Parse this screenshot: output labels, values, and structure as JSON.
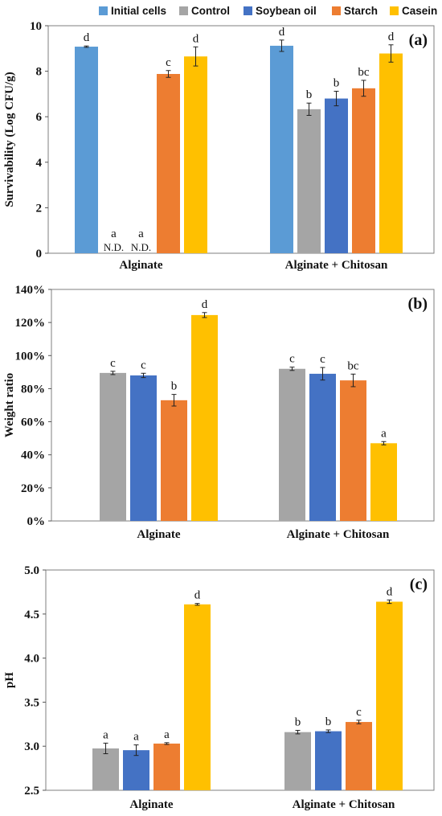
{
  "legend": [
    {
      "name": "Initial cells",
      "color": "#5b9bd5"
    },
    {
      "name": "Control",
      "color": "#a5a5a5"
    },
    {
      "name": "Soybean oil",
      "color": "#4472c4"
    },
    {
      "name": "Starch",
      "color": "#ed7d31"
    },
    {
      "name": "Casein",
      "color": "#ffc000"
    }
  ],
  "chart_data": [
    {
      "type": "bar",
      "panel_label": "(a)",
      "categories": [
        "Alginate",
        "Alginate + Chitosan"
      ],
      "ylabel": "Survivability (Log CFU/g)",
      "ylim": [
        0,
        10
      ],
      "yticks": [
        0,
        2,
        4,
        6,
        8,
        10
      ],
      "ytick_format": "int",
      "legend_position": "top",
      "series": [
        {
          "name": "Initial cells",
          "color": "#5b9bd5",
          "values": [
            9.08,
            9.12
          ],
          "errors": [
            0.03,
            0.25
          ],
          "letters": [
            "d",
            "d"
          ],
          "na": [
            "",
            ""
          ]
        },
        {
          "name": "Control",
          "color": "#a5a5a5",
          "values": [
            0,
            6.33
          ],
          "errors": [
            0,
            0.27
          ],
          "letters": [
            "a",
            "b"
          ],
          "na": [
            "N.D.",
            ""
          ]
        },
        {
          "name": "Soybean oil",
          "color": "#4472c4",
          "values": [
            0,
            6.8
          ],
          "errors": [
            0,
            0.32
          ],
          "letters": [
            "a",
            "b"
          ],
          "na": [
            "N.D.",
            ""
          ]
        },
        {
          "name": "Starch",
          "color": "#ed7d31",
          "values": [
            7.88,
            7.25
          ],
          "errors": [
            0.15,
            0.35
          ],
          "letters": [
            "c",
            "bc"
          ],
          "na": [
            "",
            ""
          ]
        },
        {
          "name": "Casein",
          "color": "#ffc000",
          "values": [
            8.65,
            8.78
          ],
          "errors": [
            0.42,
            0.38
          ],
          "letters": [
            "d",
            "d"
          ],
          "na": [
            "",
            ""
          ]
        }
      ]
    },
    {
      "type": "bar",
      "panel_label": "(b)",
      "categories": [
        "Alginate",
        "Alginate + Chitosan"
      ],
      "ylabel": "Weight ratio",
      "ylim": [
        0,
        140
      ],
      "yticks": [
        0,
        20,
        40,
        60,
        80,
        100,
        120,
        140
      ],
      "ytick_format": "percent",
      "series": [
        {
          "name": "Control",
          "color": "#a5a5a5",
          "values": [
            89.5,
            92
          ],
          "errors": [
            1,
            1
          ],
          "letters": [
            "c",
            "c"
          ]
        },
        {
          "name": "Soybean oil",
          "color": "#4472c4",
          "values": [
            88,
            89
          ],
          "errors": [
            1.3,
            3.8
          ],
          "letters": [
            "c",
            "c"
          ]
        },
        {
          "name": "Starch",
          "color": "#ed7d31",
          "values": [
            73,
            85
          ],
          "errors": [
            3.5,
            3.8
          ],
          "letters": [
            "b",
            "bc"
          ]
        },
        {
          "name": "Casein",
          "color": "#ffc000",
          "values": [
            124.5,
            47
          ],
          "errors": [
            1.5,
            1
          ],
          "letters": [
            "d",
            "a"
          ]
        }
      ]
    },
    {
      "type": "bar",
      "panel_label": "(c)",
      "categories": [
        "Alginate",
        "Alginate + Chitosan"
      ],
      "ylabel": "pH",
      "ylim": [
        2.5,
        5.0
      ],
      "yticks": [
        2.5,
        3.0,
        3.5,
        4.0,
        4.5,
        5.0
      ],
      "ytick_format": "decimal1",
      "series": [
        {
          "name": "Control",
          "color": "#a5a5a5",
          "values": [
            2.975,
            3.16
          ],
          "errors": [
            0.06,
            0.02
          ],
          "letters": [
            "a",
            "b"
          ]
        },
        {
          "name": "Soybean oil",
          "color": "#4472c4",
          "values": [
            2.955,
            3.17
          ],
          "errors": [
            0.06,
            0.015
          ],
          "letters": [
            "a",
            "b"
          ]
        },
        {
          "name": "Starch",
          "color": "#ed7d31",
          "values": [
            3.03,
            3.275
          ],
          "errors": [
            0.01,
            0.02
          ],
          "letters": [
            "a",
            "c"
          ]
        },
        {
          "name": "Casein",
          "color": "#ffc000",
          "values": [
            4.61,
            4.64
          ],
          "errors": [
            0.01,
            0.02
          ],
          "letters": [
            "d",
            "d"
          ]
        }
      ]
    }
  ]
}
